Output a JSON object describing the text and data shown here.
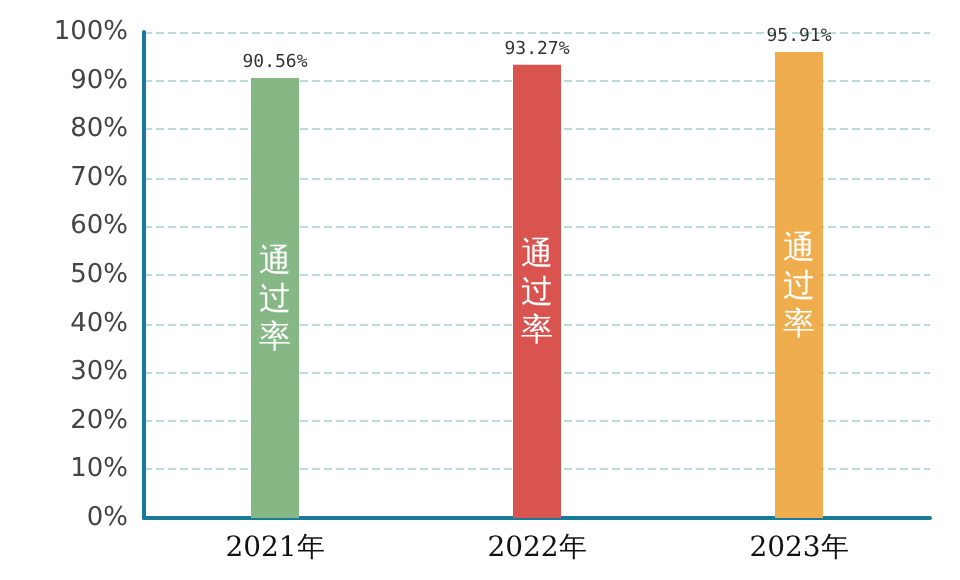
{
  "chart_data": {
    "type": "bar",
    "categories": [
      "2021年",
      "2022年",
      "2023年"
    ],
    "series": [
      {
        "name": "通过率",
        "colors": [
          "#86b886",
          "#d9534f",
          "#f0ad4e"
        ],
        "values": [
          90.56,
          93.27,
          95.91
        ],
        "value_labels": [
          "90.56%",
          "93.27%",
          "95.91%"
        ]
      }
    ],
    "ylim": [
      0,
      100
    ],
    "yticks": [
      {
        "value": 0,
        "label": "0%"
      },
      {
        "value": 10,
        "label": "10%"
      },
      {
        "value": 20,
        "label": "20%"
      },
      {
        "value": 30,
        "label": "30%"
      },
      {
        "value": 40,
        "label": "40%"
      },
      {
        "value": 50,
        "label": "50%"
      },
      {
        "value": 60,
        "label": "60%"
      },
      {
        "value": 70,
        "label": "70%"
      },
      {
        "value": 80,
        "label": "80%"
      },
      {
        "value": 90,
        "label": "90%"
      },
      {
        "value": 100,
        "label": "100%"
      }
    ],
    "grid": "y",
    "legend": false
  }
}
